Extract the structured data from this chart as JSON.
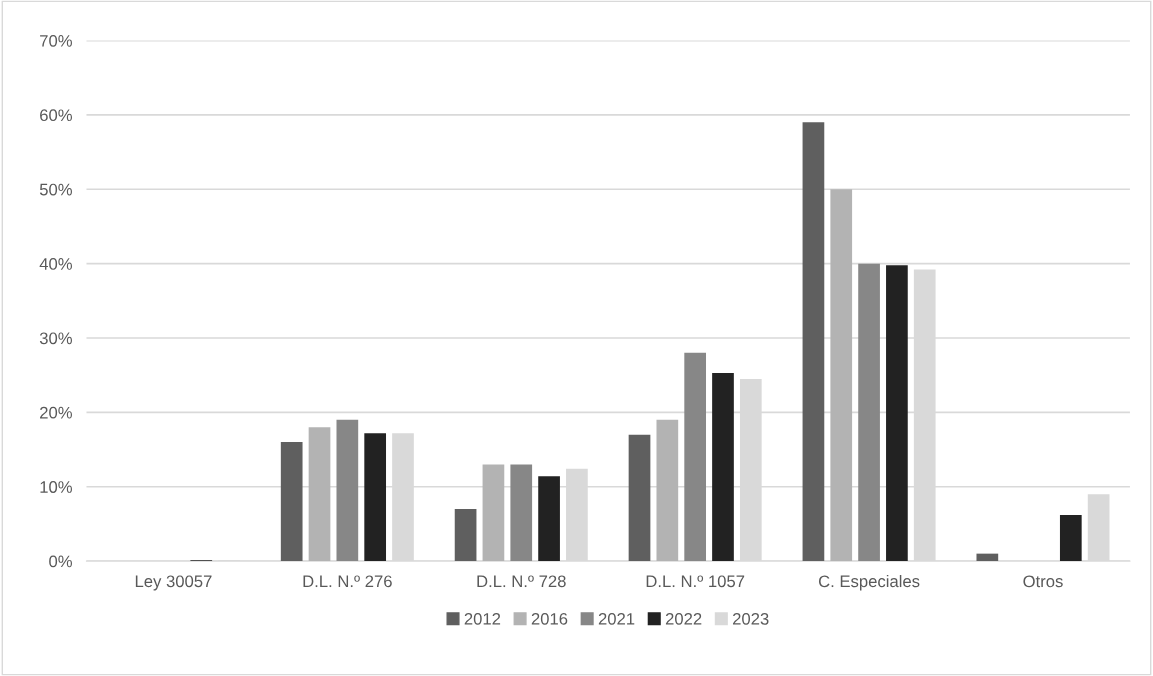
{
  "chart_data": {
    "type": "bar",
    "categories": [
      "Ley 30057",
      "D.L. N.º 276",
      "D.L. N.º 728",
      "D.L. N.º 1057",
      "C. Especiales",
      "Otros"
    ],
    "series": [
      {
        "name": "2012",
        "color": "#5f5f5f",
        "values": [
          0,
          16,
          7,
          17,
          59,
          1
        ]
      },
      {
        "name": "2016",
        "color": "#b3b3b3",
        "values": [
          0,
          18,
          13,
          19,
          50,
          0
        ]
      },
      {
        "name": "2021",
        "color": "#878787",
        "values": [
          0,
          19,
          13,
          28,
          40,
          0
        ]
      },
      {
        "name": "2022",
        "color": "#222222",
        "values": [
          0.1,
          17.2,
          11.4,
          25.3,
          39.8,
          6.2
        ]
      },
      {
        "name": "2023",
        "color": "#d9d9d9",
        "values": [
          0.1,
          17.2,
          12.4,
          24.5,
          39.2,
          9
        ]
      }
    ],
    "ylim": [
      0,
      70
    ],
    "yticks": [
      {
        "value": 0,
        "label": "0%"
      },
      {
        "value": 10,
        "label": "10%"
      },
      {
        "value": 20,
        "label": "20%"
      },
      {
        "value": 30,
        "label": "30%"
      },
      {
        "value": 40,
        "label": "40%"
      },
      {
        "value": 50,
        "label": "50%"
      },
      {
        "value": 60,
        "label": "60%"
      },
      {
        "value": 70,
        "label": "70%"
      }
    ],
    "grid": "y",
    "legend": "bottom"
  }
}
